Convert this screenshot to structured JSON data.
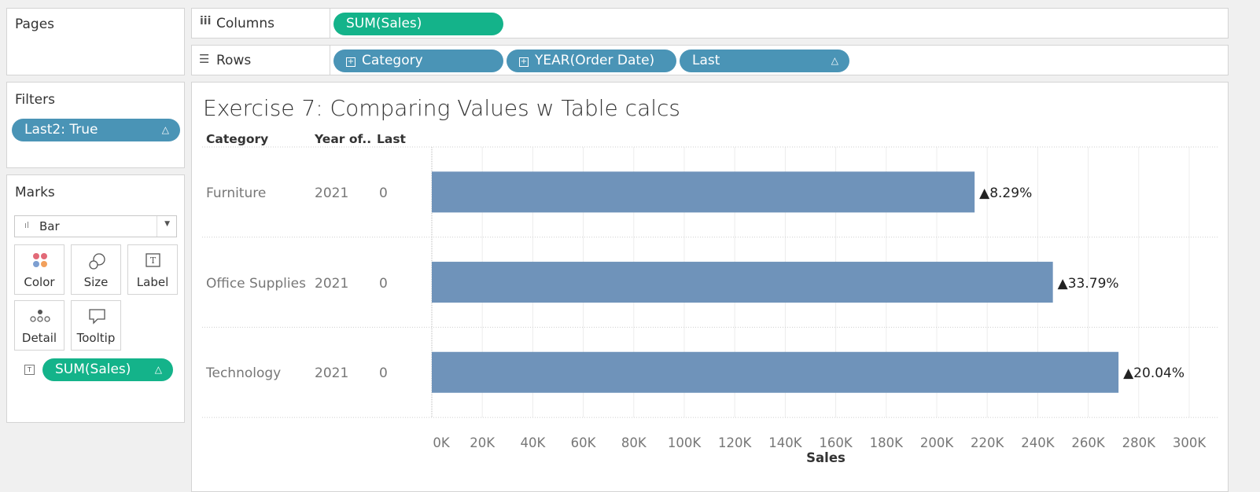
{
  "pages_panel": {
    "title": "Pages"
  },
  "shelves": {
    "columns_label": "Columns",
    "columns_pills": [
      "SUM(Sales)"
    ],
    "rows_label": "Rows",
    "rows_pills": [
      "Category",
      "YEAR(Order Date)",
      "Last"
    ]
  },
  "filters_panel": {
    "title": "Filters",
    "pill": "Last2: True"
  },
  "marks_panel": {
    "title": "Marks",
    "mark_type": "Bar",
    "buttons": [
      "Color",
      "Size",
      "Label",
      "Detail",
      "Tooltip"
    ],
    "label_pill": "SUM(Sales)"
  },
  "viz": {
    "title": "Exercise 7: Comparing Values w Table calcs",
    "headers": [
      "Category",
      "Year of..",
      "Last"
    ],
    "rows": [
      {
        "category": "Furniture",
        "year": "2021",
        "last": "0",
        "label": "8.29%"
      },
      {
        "category": "Office Supplies",
        "year": "2021",
        "last": "0",
        "label": "33.79%"
      },
      {
        "category": "Technology",
        "year": "2021",
        "last": "0",
        "label": "20.04%"
      }
    ],
    "x_axis_label": "Sales"
  },
  "chart_data": {
    "type": "bar",
    "orientation": "horizontal",
    "categories": [
      "Furniture",
      "Office Supplies",
      "Technology"
    ],
    "values": [
      215000,
      246000,
      272000
    ],
    "data_labels": [
      "▲8.29%",
      "▲33.79%",
      "▲20.04%"
    ],
    "xlabel": "Sales",
    "xlim": [
      0,
      300000
    ],
    "x_ticks": [
      "0K",
      "20K",
      "40K",
      "60K",
      "80K",
      "100K",
      "120K",
      "140K",
      "160K",
      "180K",
      "200K",
      "220K",
      "240K",
      "260K",
      "280K",
      "300K"
    ],
    "bar_color": "#6f93ba",
    "grid": true
  },
  "colors": {
    "green_pill": "#14b38a",
    "blue_pill": "#4a94b6",
    "bar": "#6f93ba"
  }
}
